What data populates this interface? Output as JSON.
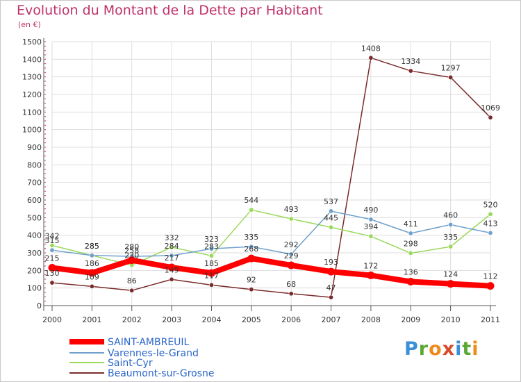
{
  "page": {
    "title": "Evolution du Montant de la Dette par Habitant",
    "subtitle": "(en €)"
  },
  "brand": {
    "letters": [
      "P",
      "r",
      "o",
      "x",
      "i",
      "t",
      "i"
    ],
    "colors": [
      "#3a8fd6",
      "#5aa832",
      "#f08a1c",
      "#d84a2a",
      "#3a8fd6",
      "#5aa832",
      "#f08a1c"
    ]
  },
  "chart_data": {
    "type": "line",
    "title": "Evolution du Montant de la Dette par Habitant",
    "subtitle": "(en €)",
    "x": [
      "2000",
      "2001",
      "2002",
      "2003",
      "2004",
      "2005",
      "2006",
      "2007",
      "2008",
      "2009",
      "2010",
      "2011"
    ],
    "ylim": [
      0,
      1500
    ],
    "yticks": [
      0,
      100,
      200,
      300,
      400,
      500,
      600,
      700,
      800,
      900,
      1000,
      1100,
      1200,
      1300,
      1400,
      1500
    ],
    "grid": true,
    "legend_position": "bottom-left",
    "series": [
      {
        "name": "SAINT-AMBREUIL",
        "color": "#ff0000",
        "width": 8,
        "values": [
          215,
          186,
          258,
          217,
          185,
          268,
          229,
          193,
          172,
          136,
          124,
          112
        ]
      },
      {
        "name": "Varennes-le-Grand",
        "color": "#6fa0cc",
        "width": 1.5,
        "values": [
          315,
          285,
          280,
          284,
          323,
          335,
          292,
          537,
          490,
          411,
          460,
          413
        ]
      },
      {
        "name": "Saint-Cyr",
        "color": "#99d95a",
        "width": 1.5,
        "values": [
          342,
          285,
          230,
          332,
          283,
          544,
          493,
          445,
          394,
          298,
          335,
          520
        ]
      },
      {
        "name": "Beaumont-sur-Grosne",
        "color": "#7a2a2a",
        "width": 1.5,
        "values": [
          130,
          109,
          86,
          149,
          117,
          92,
          68,
          47,
          1408,
          1334,
          1297,
          1069
        ]
      }
    ],
    "data_labels": [
      [
        "215",
        "186",
        "258",
        "217",
        "185",
        "268",
        "229",
        "193",
        "172",
        "136",
        "124",
        "112"
      ],
      [
        "315",
        "285",
        "280",
        "284",
        "323",
        "335",
        "292",
        "537",
        "490",
        "411",
        "460",
        "413"
      ],
      [
        "342",
        "285",
        "230",
        "332",
        "283",
        "544",
        "493",
        "445",
        "394",
        "298",
        "335",
        "520"
      ],
      [
        "130",
        "109",
        "86",
        "149",
        "117",
        "92",
        "68",
        "47",
        "1408",
        "1334",
        "1297",
        "1069"
      ]
    ]
  }
}
